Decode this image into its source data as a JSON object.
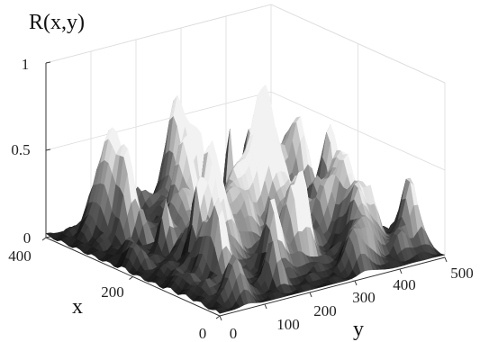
{
  "chart_data": {
    "type": "surface",
    "title": "",
    "zlabel": "R(x,y)",
    "xlabel": "x",
    "ylabel": "y",
    "x_ticks": [
      "0",
      "200",
      "400"
    ],
    "y_ticks": [
      "0",
      "100",
      "200",
      "300",
      "400",
      "500"
    ],
    "z_ticks": [
      "0",
      "0.5",
      "1"
    ],
    "xlim": [
      0,
      400
    ],
    "ylim": [
      0,
      500
    ],
    "zlim": [
      0,
      1
    ],
    "colormap": "gray",
    "grid": true,
    "peak": {
      "x": 230,
      "y": 240,
      "z": 0.7
    },
    "typical_height_range": [
      0.05,
      0.42
    ]
  }
}
